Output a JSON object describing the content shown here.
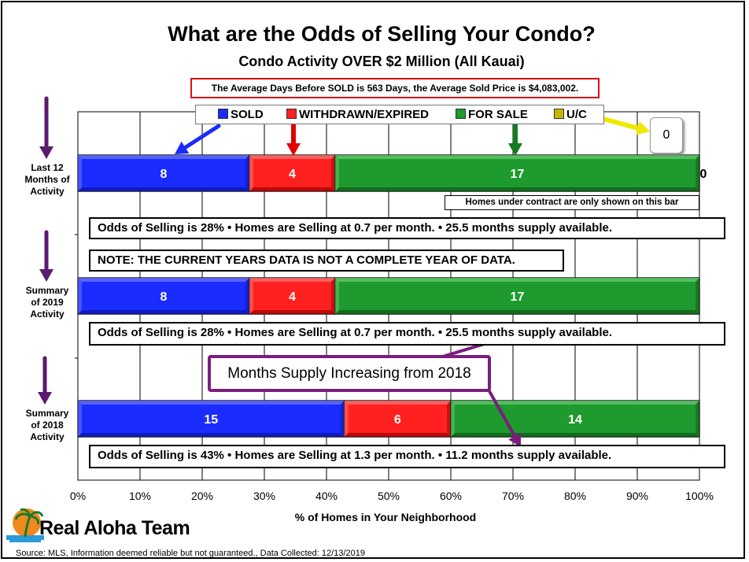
{
  "title": "What are the Odds of Selling Your Condo?",
  "subtitle": "Condo Activity OVER $2 Million (All Kauai)",
  "summary_note": "The Average Days Before SOLD is 563 Days, the Average Sold Price is $4,083,002.",
  "legend": [
    {
      "label": "SOLD",
      "color": "#1a2cff"
    },
    {
      "label": "WITHDRAWN/EXPIRED",
      "color": "#ff2020"
    },
    {
      "label": "FOR SALE",
      "color": "#1e9a2e"
    },
    {
      "label": "U/C",
      "color": "#c8b400"
    }
  ],
  "uc_count": "0",
  "uc_bar_label": "0",
  "rows": [
    {
      "label_lines": [
        "Last 12",
        "Months of",
        "Activity"
      ],
      "odds_text": "Odds of Selling is 28%  •  Homes are Selling at 0.7 per month.  •  25.5 months supply available."
    },
    {
      "label_lines": [
        "Summary",
        "of 2019",
        "Activity"
      ],
      "odds_text": "Odds of Selling is 28%  •  Homes are Selling at 0.7 per month.  •  25.5 months supply available."
    },
    {
      "label_lines": [
        "Summary",
        "of 2018",
        "Activity"
      ],
      "odds_text": "Odds of Selling is 43%  •  Homes are Selling at 1.3 per month.  •  11.2 months supply available."
    }
  ],
  "contract_note": "Homes under contract are only shown on this bar",
  "year_note": "NOTE: THE CURRENT YEARS DATA IS NOT A COMPLETE YEAR OF DATA.",
  "callout": "Months Supply Increasing from 2018",
  "x_axis_label": "% of Homes in Your Neighborhood",
  "source": "Source: MLS, Information deemed reliable but not guaranteed., Data Collected: 12/13/2019",
  "logo_text": "Real Aloha Team",
  "chart_data": {
    "type": "bar",
    "orientation": "horizontal",
    "stacked": "percent",
    "categories": [
      "Last 12 Months of Activity",
      "Summary of 2019 Activity",
      "Summary of 2018 Activity"
    ],
    "series": [
      {
        "name": "SOLD",
        "values": [
          8,
          8,
          15
        ]
      },
      {
        "name": "WITHDRAWN/EXPIRED",
        "values": [
          4,
          4,
          6
        ]
      },
      {
        "name": "FOR SALE",
        "values": [
          17,
          17,
          14
        ]
      },
      {
        "name": "U/C",
        "values": [
          0,
          null,
          null
        ]
      }
    ],
    "xlabel": "% of Homes in Your Neighborhood",
    "xticks": [
      "0%",
      "10%",
      "20%",
      "30%",
      "40%",
      "50%",
      "60%",
      "70%",
      "80%",
      "90%",
      "100%"
    ],
    "xlim": [
      0,
      100
    ],
    "grid": true,
    "legend_position": "top"
  }
}
